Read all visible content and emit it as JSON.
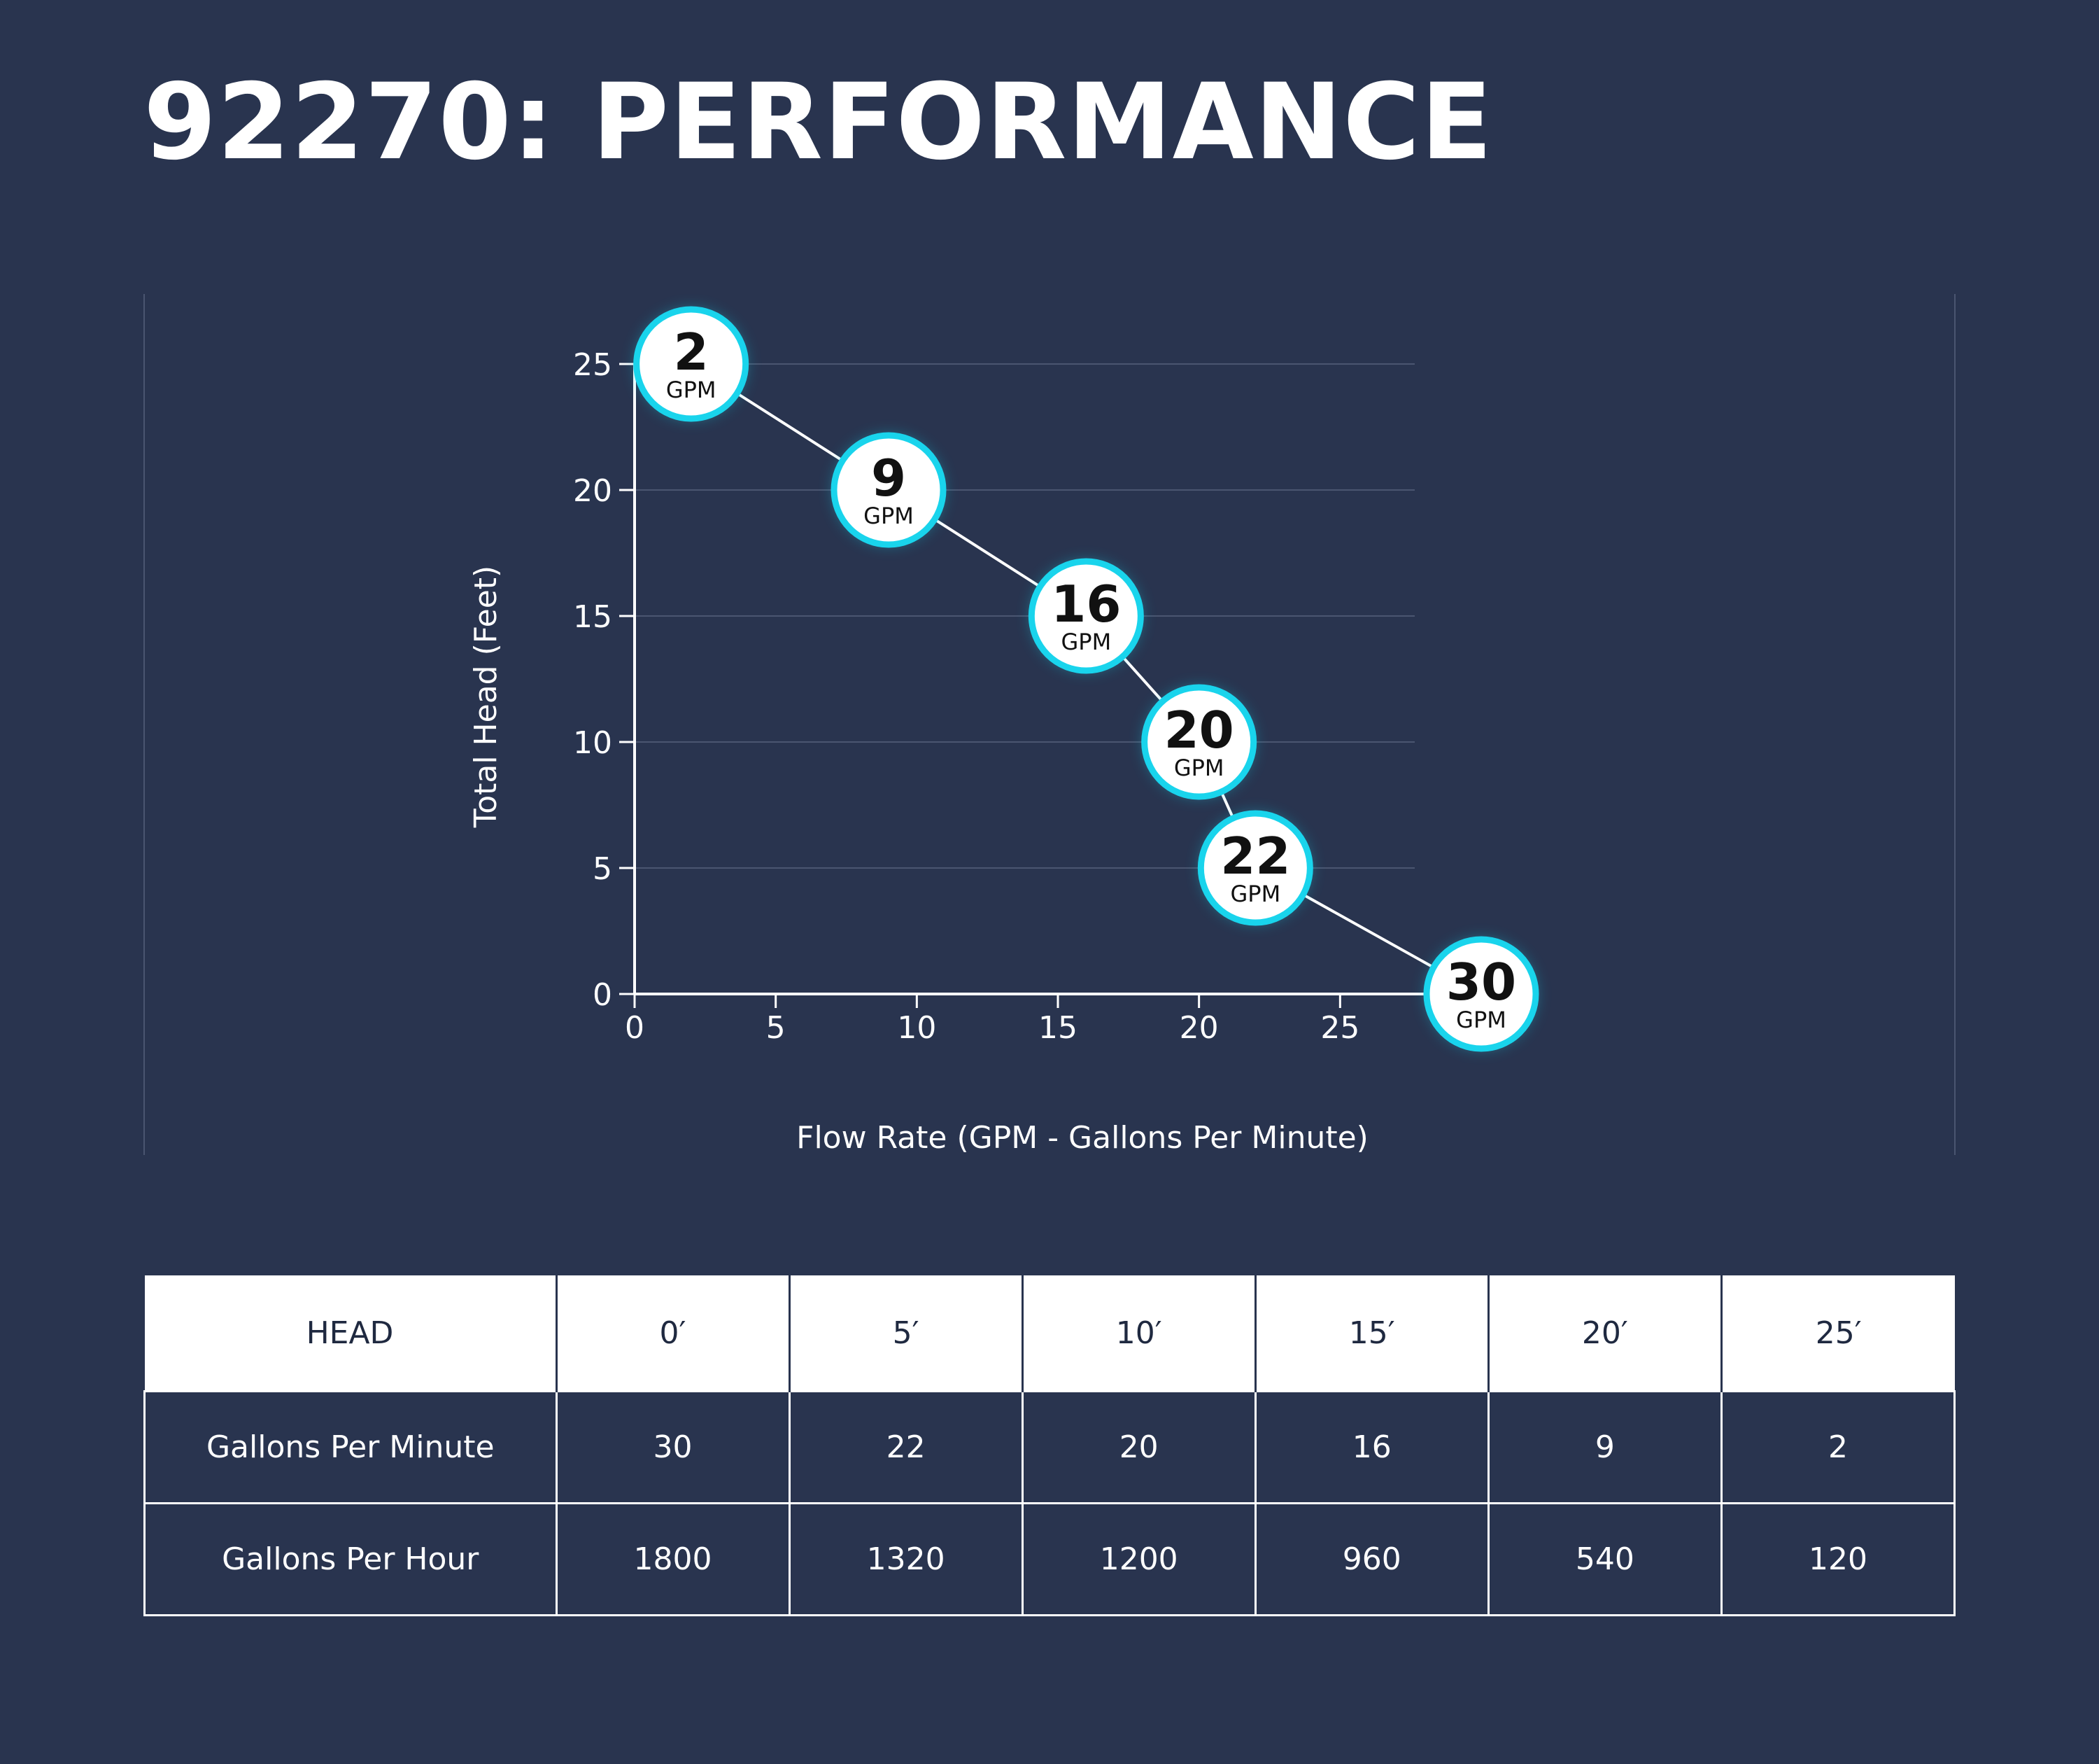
{
  "title": "92270: PERFORMANCE",
  "chart_data": {
    "type": "line",
    "xlabel": "Flow Rate (GPM - Gallons Per Minute)",
    "ylabel": "Total Head (Feet)",
    "xlim": [
      0,
      30
    ],
    "ylim": [
      0,
      25
    ],
    "xticks": [
      0,
      5,
      10,
      15,
      20,
      25
    ],
    "yticks": [
      0,
      5,
      10,
      15,
      20,
      25
    ],
    "grid": true,
    "point_unit": "GPM",
    "series": [
      {
        "x": [
          2,
          9,
          16,
          20,
          22,
          30
        ],
        "y": [
          25,
          20,
          15,
          10,
          5,
          0
        ]
      }
    ]
  },
  "table": {
    "headers": [
      "HEAD",
      "0′",
      "5′",
      "10′",
      "15′",
      "20′",
      "25′"
    ],
    "rows": [
      {
        "label": "Gallons Per Minute",
        "values": [
          "30",
          "22",
          "20",
          "16",
          "9",
          "2"
        ]
      },
      {
        "label": "Gallons Per Hour",
        "values": [
          "1800",
          "1320",
          "1200",
          "960",
          "540",
          "120"
        ]
      }
    ]
  },
  "colors": {
    "background": "#29344f",
    "marker_ring": "#19d4ec",
    "marker_fill": "#ffffff",
    "line": "#ffffff",
    "grid": "#4a5570"
  }
}
